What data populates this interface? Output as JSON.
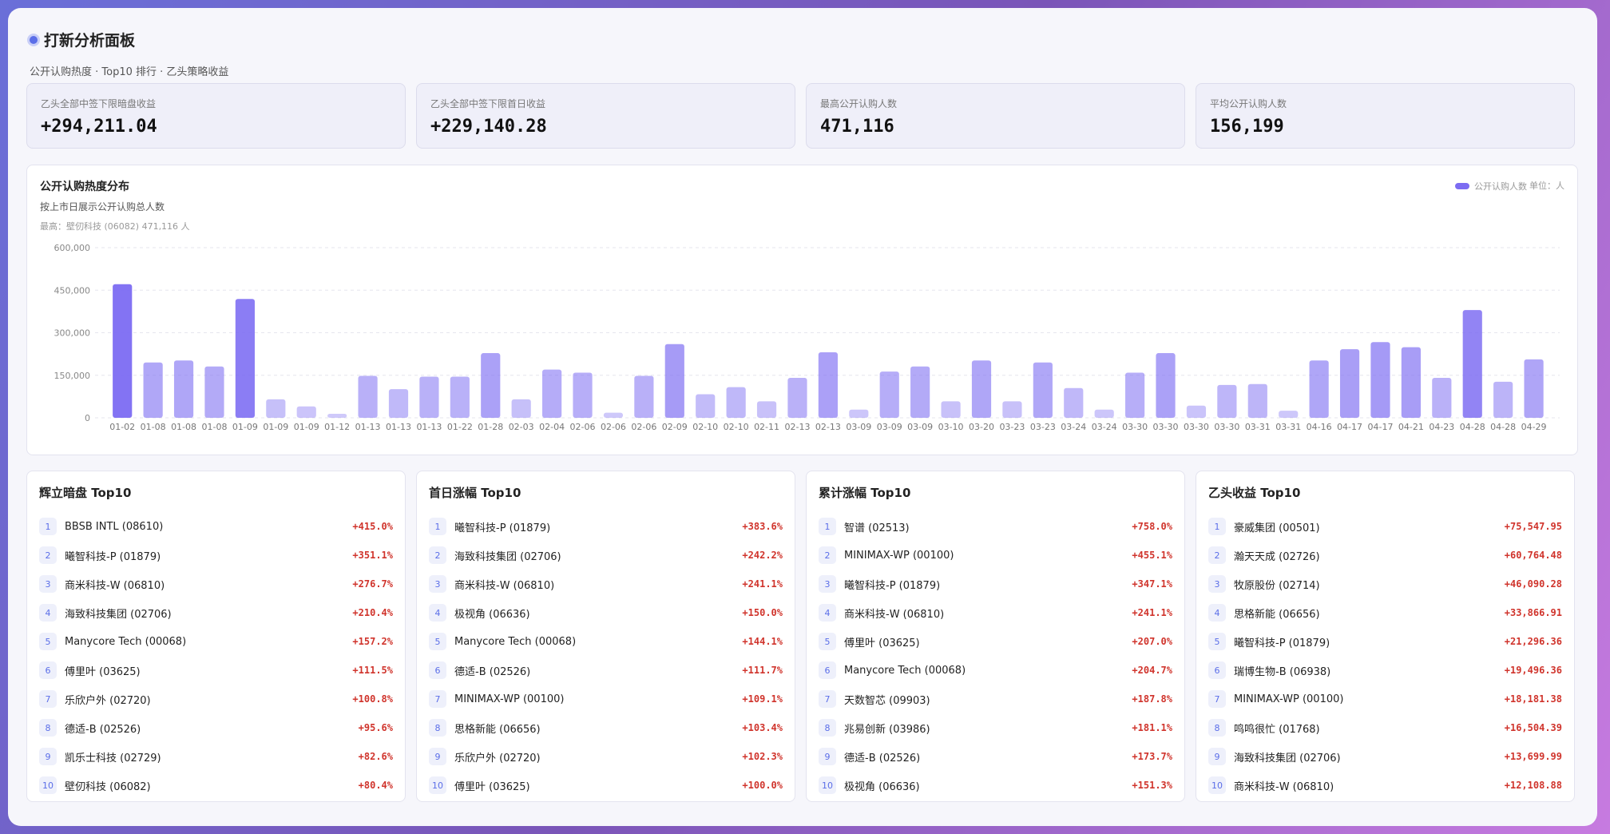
{
  "header": {
    "title": "打新分析面板",
    "subtitle": "公开认购热度 · Top10 排行 · 乙头策略收益"
  },
  "stats": [
    {
      "label": "乙头全部中签下限暗盘收益",
      "value": "+294,211.04"
    },
    {
      "label": "乙头全部中签下限首日收益",
      "value": "+229,140.28"
    },
    {
      "label": "最高公开认购人数",
      "value": "471,116"
    },
    {
      "label": "平均公开认购人数",
      "value": "156,199"
    }
  ],
  "chart_data": {
    "type": "bar",
    "title": "公开认购热度分布",
    "subtitle": "按上市日展示公开认购总人数",
    "annotation": "最高：壁仞科技 (06082) 471,116 人",
    "unit": "单位：人",
    "categories": [
      "01-02",
      "01-08",
      "01-08",
      "01-08",
      "01-09",
      "01-09",
      "01-09",
      "01-12",
      "01-13",
      "01-13",
      "01-13",
      "01-22",
      "01-28",
      "02-03",
      "02-04",
      "02-06",
      "02-06",
      "02-06",
      "02-09",
      "02-10",
      "02-10",
      "02-11",
      "02-13",
      "02-13",
      "03-09",
      "03-09",
      "03-09",
      "03-10",
      "03-20",
      "03-23",
      "03-23",
      "03-24",
      "03-24",
      "03-30",
      "03-30",
      "03-30",
      "03-30",
      "03-31",
      "03-31",
      "04-16",
      "04-17",
      "04-17",
      "04-21",
      "04-23",
      "04-28",
      "04-28",
      "04-29"
    ],
    "series": [
      {
        "name": "公开认购人数",
        "color": "#7c6cf2",
        "values": [
          471116,
          195000,
          202000,
          181000,
          419000,
          65000,
          40000,
          14000,
          148000,
          101000,
          145000,
          145000,
          228000,
          65000,
          170000,
          159000,
          18000,
          148000,
          260000,
          83000,
          108000,
          58000,
          141000,
          231000,
          29000,
          163000,
          181000,
          58000,
          202000,
          58000,
          195000,
          105000,
          29000,
          159000,
          228000,
          43000,
          116000,
          119000,
          25000,
          202000,
          242000,
          267000,
          249000,
          141000,
          380000,
          127000,
          206000
        ]
      }
    ],
    "ylim": [
      0,
      600000
    ],
    "yticks": [
      0,
      {
        "value": 150000,
        "label": "150,000"
      },
      {
        "value": 300000,
        "label": "300,000"
      },
      {
        "value": 450000,
        "label": "450,000"
      },
      {
        "value": 600000,
        "label": "600,000"
      }
    ],
    "grid": true,
    "legend": "top-right"
  },
  "lists": [
    {
      "title": "辉立暗盘 Top10",
      "items": [
        {
          "rank": 1,
          "name": "BBSB INTL (08610)",
          "value": "+415.0%"
        },
        {
          "rank": 2,
          "name": "曦智科技-P (01879)",
          "value": "+351.1%"
        },
        {
          "rank": 3,
          "name": "商米科技-W (06810)",
          "value": "+276.7%"
        },
        {
          "rank": 4,
          "name": "海致科技集团 (02706)",
          "value": "+210.4%"
        },
        {
          "rank": 5,
          "name": "Manycore Tech (00068)",
          "value": "+157.2%"
        },
        {
          "rank": 6,
          "name": "傅里叶 (03625)",
          "value": "+111.5%"
        },
        {
          "rank": 7,
          "name": "乐欣户外 (02720)",
          "value": "+100.8%"
        },
        {
          "rank": 8,
          "name": "德适-B (02526)",
          "value": "+95.6%"
        },
        {
          "rank": 9,
          "name": "凯乐士科技 (02729)",
          "value": "+82.6%"
        },
        {
          "rank": 10,
          "name": "壁仞科技 (06082)",
          "value": "+80.4%"
        }
      ]
    },
    {
      "title": "首日涨幅 Top10",
      "items": [
        {
          "rank": 1,
          "name": "曦智科技-P (01879)",
          "value": "+383.6%"
        },
        {
          "rank": 2,
          "name": "海致科技集团 (02706)",
          "value": "+242.2%"
        },
        {
          "rank": 3,
          "name": "商米科技-W (06810)",
          "value": "+241.1%"
        },
        {
          "rank": 4,
          "name": "极视角 (06636)",
          "value": "+150.0%"
        },
        {
          "rank": 5,
          "name": "Manycore Tech (00068)",
          "value": "+144.1%"
        },
        {
          "rank": 6,
          "name": "德适-B (02526)",
          "value": "+111.7%"
        },
        {
          "rank": 7,
          "name": "MINIMAX-WP (00100)",
          "value": "+109.1%"
        },
        {
          "rank": 8,
          "name": "思格新能 (06656)",
          "value": "+103.4%"
        },
        {
          "rank": 9,
          "name": "乐欣户外 (02720)",
          "value": "+102.3%"
        },
        {
          "rank": 10,
          "name": "傅里叶 (03625)",
          "value": "+100.0%"
        }
      ]
    },
    {
      "title": "累计涨幅 Top10",
      "items": [
        {
          "rank": 1,
          "name": "智谱 (02513)",
          "value": "+758.0%"
        },
        {
          "rank": 2,
          "name": "MINIMAX-WP (00100)",
          "value": "+455.1%"
        },
        {
          "rank": 3,
          "name": "曦智科技-P (01879)",
          "value": "+347.1%"
        },
        {
          "rank": 4,
          "name": "商米科技-W (06810)",
          "value": "+241.1%"
        },
        {
          "rank": 5,
          "name": "傅里叶 (03625)",
          "value": "+207.0%"
        },
        {
          "rank": 6,
          "name": "Manycore Tech (00068)",
          "value": "+204.7%"
        },
        {
          "rank": 7,
          "name": "天数智芯 (09903)",
          "value": "+187.8%"
        },
        {
          "rank": 8,
          "name": "兆易创新 (03986)",
          "value": "+181.1%"
        },
        {
          "rank": 9,
          "name": "德适-B (02526)",
          "value": "+173.7%"
        },
        {
          "rank": 10,
          "name": "极视角 (06636)",
          "value": "+151.3%"
        }
      ]
    },
    {
      "title": "乙头收益 Top10",
      "items": [
        {
          "rank": 1,
          "name": "豪威集团 (00501)",
          "value": "+75,547.95"
        },
        {
          "rank": 2,
          "name": "瀚天天成 (02726)",
          "value": "+60,764.48"
        },
        {
          "rank": 3,
          "name": "牧原股份 (02714)",
          "value": "+46,090.28"
        },
        {
          "rank": 4,
          "name": "思格新能 (06656)",
          "value": "+33,866.91"
        },
        {
          "rank": 5,
          "name": "曦智科技-P (01879)",
          "value": "+21,296.36"
        },
        {
          "rank": 6,
          "name": "瑞博生物-B (06938)",
          "value": "+19,496.36"
        },
        {
          "rank": 7,
          "name": "MINIMAX-WP (00100)",
          "value": "+18,181.38"
        },
        {
          "rank": 8,
          "name": "鸣鸣很忙 (01768)",
          "value": "+16,504.39"
        },
        {
          "rank": 9,
          "name": "海致科技集团 (02706)",
          "value": "+13,699.99"
        },
        {
          "rank": 10,
          "name": "商米科技-W (06810)",
          "value": "+12,108.88"
        }
      ]
    }
  ]
}
